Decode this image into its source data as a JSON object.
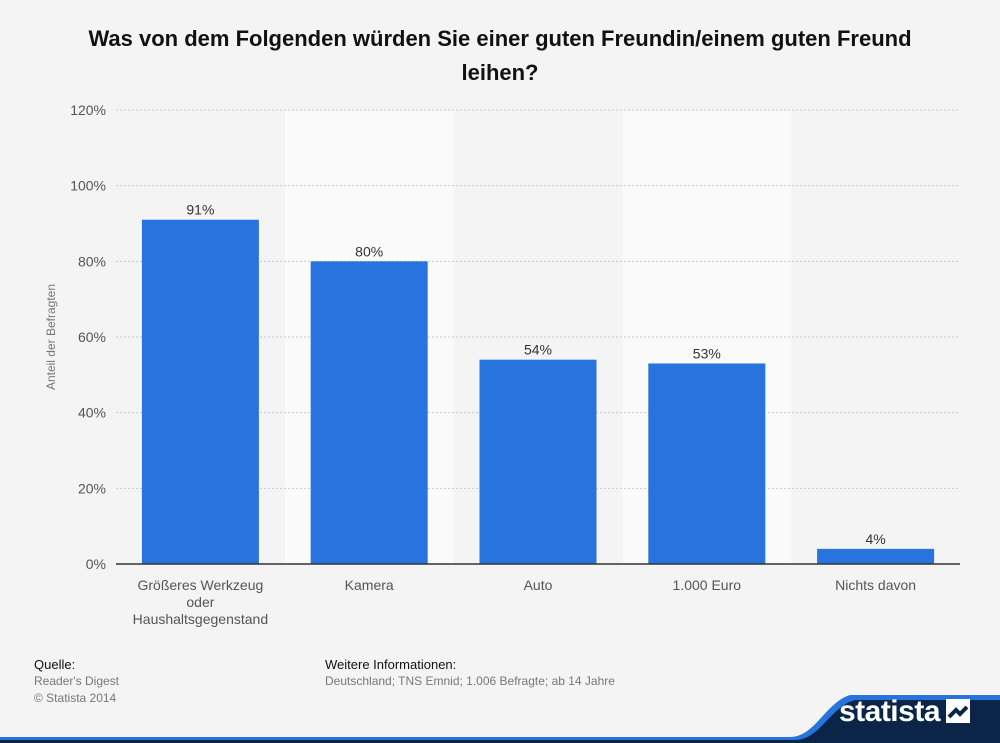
{
  "chart_data": {
    "type": "bar",
    "title_line1": "Was von dem Folgenden würden Sie einer guten Freundin/einem guten Freund",
    "title_line2": "leihen?",
    "categories": [
      [
        "Größeres Werkzeug",
        "oder",
        "Haushaltsgegenstand"
      ],
      [
        "Kamera"
      ],
      [
        "Auto"
      ],
      [
        "1.000 Euro"
      ],
      [
        "Nichts davon"
      ]
    ],
    "values": [
      91,
      80,
      54,
      53,
      4
    ],
    "value_labels": [
      "91%",
      "80%",
      "54%",
      "53%",
      "4%"
    ],
    "ylabel": "Anteil der Befragten",
    "xlabel": "",
    "ylim": [
      0,
      120
    ],
    "yticks": [
      0,
      20,
      40,
      60,
      80,
      100,
      120
    ],
    "ytick_labels": [
      "0%",
      "20%",
      "40%",
      "60%",
      "80%",
      "100%",
      "120%"
    ],
    "bar_color": "#2874de",
    "grid": true
  },
  "footer": {
    "source_heading": "Quelle:",
    "source_lines": [
      "Reader's Digest",
      "© Statista 2014"
    ],
    "info_heading": "Weitere Informationen:",
    "info_line": "Deutschland; TNS Emnid; 1.006 Befragte; ab 14 Jahre"
  },
  "brand": {
    "name": "statista",
    "color": "#0a2547",
    "accent": "#2874de"
  }
}
